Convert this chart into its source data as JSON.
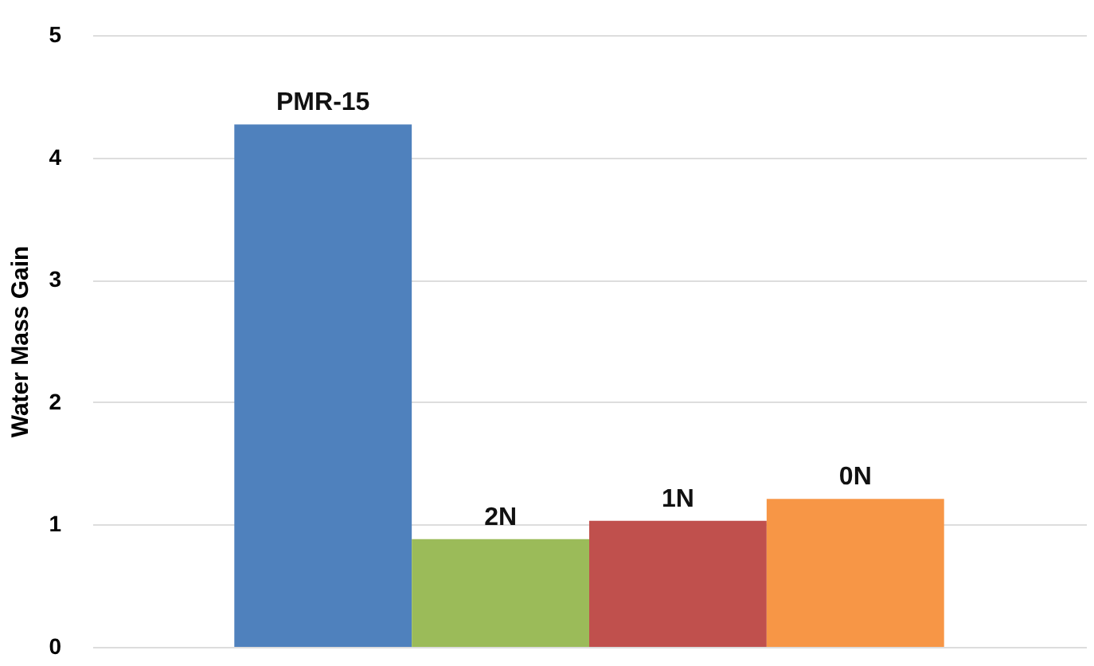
{
  "chart_data": {
    "type": "bar",
    "ylabel": "Water Mass Gain",
    "categories": [
      "PMR-15",
      "2N",
      "1N",
      "0N"
    ],
    "values": [
      4.27,
      0.88,
      1.03,
      1.21
    ],
    "colors": [
      "#4f81bd",
      "#9bbb59",
      "#c0504d",
      "#f79646"
    ],
    "ylim": [
      0,
      5
    ],
    "yticks": [
      0,
      1,
      2,
      3,
      4,
      5
    ],
    "grid": "y"
  }
}
